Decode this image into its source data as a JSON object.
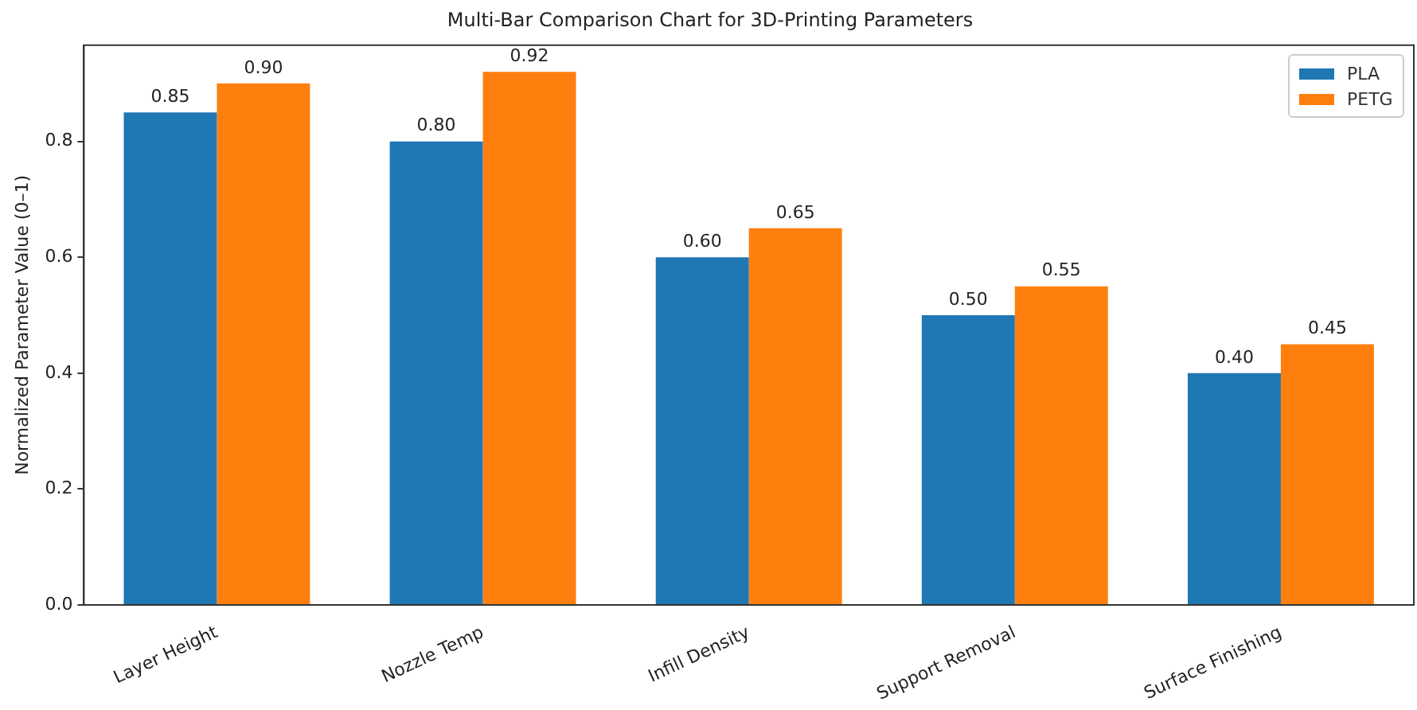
{
  "chart_data": {
    "type": "bar",
    "title": "Multi-Bar Comparison Chart for 3D-Printing Parameters",
    "ylabel": "Normalized Parameter Value (0–1)",
    "categories": [
      "Layer Height",
      "Nozzle Temp",
      "Infill Density",
      "Support Removal",
      "Surface Finishing"
    ],
    "series": [
      {
        "name": "PLA",
        "color": "#1f77b4",
        "values": [
          0.85,
          0.8,
          0.6,
          0.5,
          0.4
        ],
        "value_labels": [
          "0.85",
          "0.80",
          "0.60",
          "0.50",
          "0.40"
        ]
      },
      {
        "name": "PETG",
        "color": "#ff7f0e",
        "values": [
          0.9,
          0.92,
          0.65,
          0.55,
          0.45
        ],
        "value_labels": [
          "0.90",
          "0.92",
          "0.65",
          "0.55",
          "0.45"
        ]
      }
    ],
    "ylim": [
      0,
      0.966
    ],
    "yticks": [
      {
        "value": 0,
        "label": "0.0"
      },
      {
        "value": 0.2,
        "label": "0.2"
      },
      {
        "value": 0.4,
        "label": "0.4"
      },
      {
        "value": 0.6,
        "label": "0.6"
      },
      {
        "value": 0.8,
        "label": "0.8"
      }
    ],
    "grid": false,
    "legend": "top right"
  }
}
